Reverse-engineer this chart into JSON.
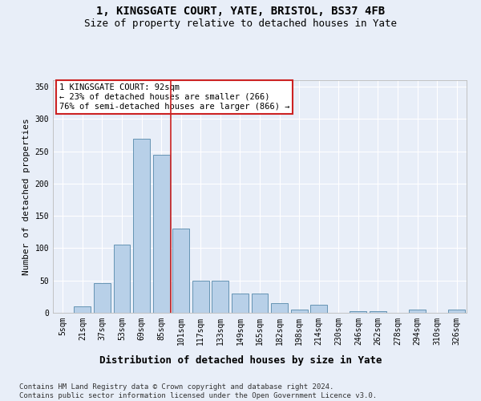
{
  "title": "1, KINGSGATE COURT, YATE, BRISTOL, BS37 4FB",
  "subtitle": "Size of property relative to detached houses in Yate",
  "xlabel": "Distribution of detached houses by size in Yate",
  "ylabel": "Number of detached properties",
  "categories": [
    "5sqm",
    "21sqm",
    "37sqm",
    "53sqm",
    "69sqm",
    "85sqm",
    "101sqm",
    "117sqm",
    "133sqm",
    "149sqm",
    "165sqm",
    "182sqm",
    "198sqm",
    "214sqm",
    "230sqm",
    "246sqm",
    "262sqm",
    "278sqm",
    "294sqm",
    "310sqm",
    "326sqm"
  ],
  "bar_values": [
    0,
    10,
    46,
    105,
    270,
    245,
    130,
    50,
    50,
    30,
    30,
    15,
    5,
    12,
    0,
    3,
    3,
    0,
    5,
    0,
    5
  ],
  "bar_color": "#b8d0e8",
  "bar_edge_color": "#5588aa",
  "background_color": "#e8eef8",
  "grid_color": "#ffffff",
  "vline_x_index": 5,
  "vline_color": "#cc2222",
  "annotation_text": "1 KINGSGATE COURT: 92sqm\n← 23% of detached houses are smaller (266)\n76% of semi-detached houses are larger (866) →",
  "annotation_box_facecolor": "#ffffff",
  "annotation_box_edgecolor": "#cc2222",
  "ylim": [
    0,
    360
  ],
  "yticks": [
    0,
    50,
    100,
    150,
    200,
    250,
    300,
    350
  ],
  "footer_text": "Contains HM Land Registry data © Crown copyright and database right 2024.\nContains public sector information licensed under the Open Government Licence v3.0.",
  "title_fontsize": 10,
  "subtitle_fontsize": 9,
  "xlabel_fontsize": 9,
  "ylabel_fontsize": 8,
  "tick_fontsize": 7,
  "annot_fontsize": 7.5,
  "footer_fontsize": 6.5
}
